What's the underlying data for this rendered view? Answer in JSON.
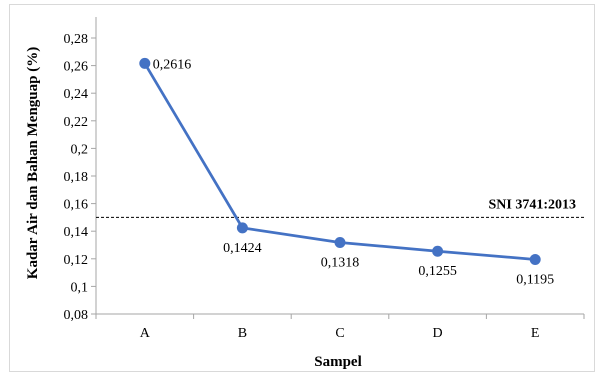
{
  "chart_data": {
    "type": "line",
    "title": "",
    "xlabel": "Sampel",
    "ylabel": "Kadar Air dan Bahan Menguap (%)",
    "categories": [
      "A",
      "B",
      "C",
      "D",
      "E"
    ],
    "series": [
      {
        "values": [
          0.2616,
          0.1424,
          0.1318,
          0.1255,
          0.1195
        ],
        "color": "#4472c4"
      }
    ],
    "data_labels": [
      "0,2616",
      "0,1424",
      "0,1318",
      "0,1255",
      "0,1195"
    ],
    "ylim": [
      0.08,
      0.28
    ],
    "yticks": [
      0.08,
      0.1,
      0.12,
      0.14,
      0.16,
      0.18,
      0.2,
      0.22,
      0.24,
      0.26,
      0.28
    ],
    "ytick_labels": [
      "0,08",
      "0,1",
      "0,12",
      "0,14",
      "0,16",
      "0,18",
      "0,2",
      "0,22",
      "0,24",
      "0,26",
      "0,28"
    ],
    "reference_line": {
      "label": "SNI 3741:2013",
      "value": 0.15,
      "style": "dashed"
    },
    "grid": false,
    "legend": "none"
  }
}
